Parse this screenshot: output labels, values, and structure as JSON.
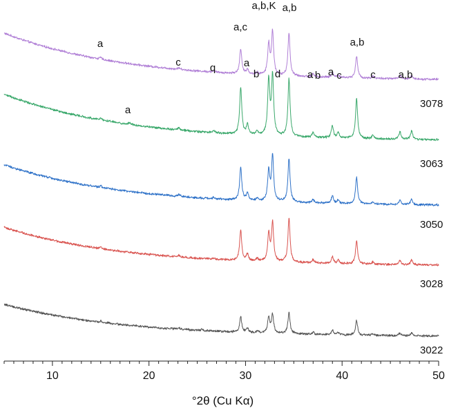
{
  "chart_data": {
    "type": "line",
    "title": "",
    "xlabel": "°2θ (Cu Kα)",
    "ylabel": "",
    "xlim": [
      5,
      50
    ],
    "x_ticks": [
      10,
      20,
      30,
      40,
      50
    ],
    "x_minor_step": 1,
    "grid": false,
    "stack_order_top_to_bottom": [
      "3078",
      "3063",
      "3050",
      "3028",
      "3022"
    ],
    "peaks_2theta": [
      15.0,
      18.0,
      23.1,
      26.7,
      29.5,
      30.2,
      31.2,
      32.4,
      32.8,
      34.5,
      37.0,
      39.0,
      39.6,
      41.5,
      43.2,
      46.0,
      47.2
    ],
    "series": [
      {
        "name": "3078",
        "color": "#b07fd6",
        "baseline": {
          "start": 100,
          "end": 14
        },
        "peaks": [
          [
            15.0,
            3
          ],
          [
            23.1,
            3
          ],
          [
            26.7,
            3
          ],
          [
            29.5,
            45
          ],
          [
            30.2,
            9
          ],
          [
            31.2,
            4
          ],
          [
            32.4,
            55
          ],
          [
            32.8,
            78
          ],
          [
            34.5,
            78
          ],
          [
            37.0,
            6
          ],
          [
            39.0,
            8
          ],
          [
            39.6,
            5
          ],
          [
            41.5,
            40
          ],
          [
            43.2,
            4
          ],
          [
            46.0,
            6
          ],
          [
            47.2,
            6
          ]
        ]
      },
      {
        "name": "3063",
        "color": "#3aa86b",
        "baseline": {
          "start": 97,
          "end": 12
        },
        "peaks": [
          [
            15.0,
            3
          ],
          [
            18.0,
            3
          ],
          [
            23.1,
            4
          ],
          [
            26.7,
            4
          ],
          [
            29.5,
            85
          ],
          [
            30.2,
            18
          ],
          [
            31.2,
            6
          ],
          [
            32.4,
            100
          ],
          [
            32.8,
            108
          ],
          [
            34.5,
            105
          ],
          [
            37.0,
            8
          ],
          [
            39.0,
            22
          ],
          [
            39.6,
            9
          ],
          [
            41.5,
            72
          ],
          [
            43.2,
            6
          ],
          [
            46.0,
            14
          ],
          [
            47.2,
            16
          ]
        ]
      },
      {
        "name": "3050",
        "color": "#2f72c8",
        "baseline": {
          "start": 88,
          "end": 13
        },
        "peaks": [
          [
            15.0,
            3
          ],
          [
            23.1,
            3
          ],
          [
            26.7,
            2
          ],
          [
            29.5,
            60
          ],
          [
            30.2,
            14
          ],
          [
            31.2,
            5
          ],
          [
            32.4,
            55
          ],
          [
            32.8,
            82
          ],
          [
            34.5,
            80
          ],
          [
            37.0,
            6
          ],
          [
            39.0,
            14
          ],
          [
            39.6,
            6
          ],
          [
            41.5,
            48
          ],
          [
            43.2,
            4
          ],
          [
            46.0,
            8
          ],
          [
            47.2,
            10
          ]
        ]
      },
      {
        "name": "3028",
        "color": "#d9534f",
        "baseline": {
          "start": 82,
          "end": 12
        },
        "peaks": [
          [
            15.0,
            3
          ],
          [
            23.1,
            3
          ],
          [
            26.7,
            2
          ],
          [
            29.5,
            55
          ],
          [
            30.2,
            12
          ],
          [
            31.2,
            5
          ],
          [
            32.4,
            50
          ],
          [
            32.8,
            70
          ],
          [
            34.5,
            80
          ],
          [
            37.0,
            6
          ],
          [
            39.0,
            12
          ],
          [
            39.6,
            6
          ],
          [
            41.5,
            42
          ],
          [
            43.2,
            4
          ],
          [
            46.0,
            8
          ],
          [
            47.2,
            9
          ]
        ]
      },
      {
        "name": "3022",
        "color": "#555555",
        "baseline": {
          "start": 64,
          "end": 5
        },
        "peaks": [
          [
            15.0,
            2
          ],
          [
            23.1,
            2
          ],
          [
            25.5,
            2
          ],
          [
            29.5,
            28
          ],
          [
            30.2,
            7
          ],
          [
            31.2,
            3
          ],
          [
            32.4,
            28
          ],
          [
            32.8,
            34
          ],
          [
            34.5,
            38
          ],
          [
            37.0,
            4
          ],
          [
            39.0,
            8
          ],
          [
            39.6,
            4
          ],
          [
            41.5,
            26
          ],
          [
            43.2,
            3
          ],
          [
            46.0,
            5
          ],
          [
            47.2,
            5
          ]
        ]
      }
    ],
    "annotations": [
      {
        "text": "a",
        "x": 15.0
      },
      {
        "text": "c",
        "x": 23.3
      },
      {
        "text": "q",
        "x": 26.8
      },
      {
        "text": "a,c",
        "x": 29.8
      },
      {
        "text": "a",
        "x": 30.5
      },
      {
        "text": "b",
        "x": 31.3
      },
      {
        "text": "a,b,K",
        "x": 32.5
      },
      {
        "text": "d",
        "x": 33.7
      },
      {
        "text": "a",
        "x": 37.0
      },
      {
        "text": "b",
        "x": 37.6
      },
      {
        "text": "a",
        "x": 39.0
      },
      {
        "text": "c",
        "x": 39.8
      },
      {
        "text": "a,b",
        "x": 34.7
      },
      {
        "text": "a,b",
        "x": 41.5
      },
      {
        "text": "c",
        "x": 43.4
      },
      {
        "text": "a,b",
        "x": 46.5
      },
      {
        "text": "a",
        "x": 18.1
      }
    ]
  }
}
